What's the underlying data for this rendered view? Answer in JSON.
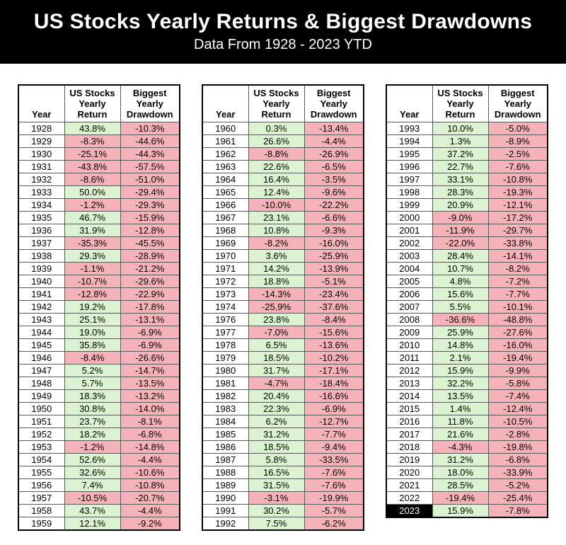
{
  "header": {
    "title": "US Stocks Yearly Returns & Biggest Drawdowns",
    "subtitle": "Data From 1928 - 2023 YTD"
  },
  "theme": {
    "banner_bg": "#000000",
    "banner_fg": "#ffffff",
    "positive_cell": "#dbf3d0",
    "negative_cell": "#f5b3b9",
    "highlight_year_bg": "#000000",
    "highlight_year_fg": "#ffffff",
    "grid_line": "#595959",
    "table_border": "#000000"
  },
  "chart_data": {
    "type": "table",
    "title": "US Stocks Yearly Returns & Biggest Drawdowns",
    "subtitle": "Data From 1928 - 2023 YTD",
    "columns": [
      "Year",
      "US Stocks Yearly Return",
      "Biggest Yearly Drawdown"
    ],
    "highlight_years": [
      "2023"
    ],
    "tables": [
      {
        "rows": [
          [
            "1928",
            "43.8%",
            "-10.3%"
          ],
          [
            "1929",
            "-8.3%",
            "-44.6%"
          ],
          [
            "1930",
            "-25.1%",
            "-44.3%"
          ],
          [
            "1931",
            "-43.8%",
            "-57.5%"
          ],
          [
            "1932",
            "-8.6%",
            "-51.0%"
          ],
          [
            "1933",
            "50.0%",
            "-29.4%"
          ],
          [
            "1934",
            "-1.2%",
            "-29.3%"
          ],
          [
            "1935",
            "46.7%",
            "-15.9%"
          ],
          [
            "1936",
            "31.9%",
            "-12.8%"
          ],
          [
            "1937",
            "-35.3%",
            "-45.5%"
          ],
          [
            "1938",
            "29.3%",
            "-28.9%"
          ],
          [
            "1939",
            "-1.1%",
            "-21.2%"
          ],
          [
            "1940",
            "-10.7%",
            "-29.6%"
          ],
          [
            "1941",
            "-12.8%",
            "-22.9%"
          ],
          [
            "1942",
            "19.2%",
            "-17.8%"
          ],
          [
            "1943",
            "25.1%",
            "-13.1%"
          ],
          [
            "1944",
            "19.0%",
            "-6.9%"
          ],
          [
            "1945",
            "35.8%",
            "-6.9%"
          ],
          [
            "1946",
            "-8.4%",
            "-26.6%"
          ],
          [
            "1947",
            "5.2%",
            "-14.7%"
          ],
          [
            "1948",
            "5.7%",
            "-13.5%"
          ],
          [
            "1949",
            "18.3%",
            "-13.2%"
          ],
          [
            "1950",
            "30.8%",
            "-14.0%"
          ],
          [
            "1951",
            "23.7%",
            "-8.1%"
          ],
          [
            "1952",
            "18.2%",
            "-6.8%"
          ],
          [
            "1953",
            "-1.2%",
            "-14.8%"
          ],
          [
            "1954",
            "52.6%",
            "-4.4%"
          ],
          [
            "1955",
            "32.6%",
            "-10.6%"
          ],
          [
            "1956",
            "7.4%",
            "-10.8%"
          ],
          [
            "1957",
            "-10.5%",
            "-20.7%"
          ],
          [
            "1958",
            "43.7%",
            "-4.4%"
          ],
          [
            "1959",
            "12.1%",
            "-9.2%"
          ]
        ]
      },
      {
        "rows": [
          [
            "1960",
            "0.3%",
            "-13.4%"
          ],
          [
            "1961",
            "26.6%",
            "-4.4%"
          ],
          [
            "1962",
            "-8.8%",
            "-26.9%"
          ],
          [
            "1963",
            "22.6%",
            "-6.5%"
          ],
          [
            "1964",
            "16.4%",
            "-3.5%"
          ],
          [
            "1965",
            "12.4%",
            "-9.6%"
          ],
          [
            "1966",
            "-10.0%",
            "-22.2%"
          ],
          [
            "1967",
            "23.1%",
            "-6.6%"
          ],
          [
            "1968",
            "10.8%",
            "-9.3%"
          ],
          [
            "1969",
            "-8.2%",
            "-16.0%"
          ],
          [
            "1970",
            "3.6%",
            "-25.9%"
          ],
          [
            "1971",
            "14.2%",
            "-13.9%"
          ],
          [
            "1972",
            "18.8%",
            "-5.1%"
          ],
          [
            "1973",
            "-14.3%",
            "-23.4%"
          ],
          [
            "1974",
            "-25.9%",
            "-37.6%"
          ],
          [
            "1976",
            "23.8%",
            "-8.4%"
          ],
          [
            "1977",
            "-7.0%",
            "-15.6%"
          ],
          [
            "1978",
            "6.5%",
            "-13.6%"
          ],
          [
            "1979",
            "18.5%",
            "-10.2%"
          ],
          [
            "1980",
            "31.7%",
            "-17.1%"
          ],
          [
            "1981",
            "-4.7%",
            "-18.4%"
          ],
          [
            "1982",
            "20.4%",
            "-16.6%"
          ],
          [
            "1983",
            "22.3%",
            "-6.9%"
          ],
          [
            "1984",
            "6.2%",
            "-12.7%"
          ],
          [
            "1985",
            "31.2%",
            "-7.7%"
          ],
          [
            "1986",
            "18.5%",
            "-9.4%"
          ],
          [
            "1987",
            "5.8%",
            "-33.5%"
          ],
          [
            "1988",
            "16.5%",
            "-7.6%"
          ],
          [
            "1989",
            "31.5%",
            "-7.6%"
          ],
          [
            "1990",
            "-3.1%",
            "-19.9%"
          ],
          [
            "1991",
            "30.2%",
            "-5.7%"
          ],
          [
            "1992",
            "7.5%",
            "-6.2%"
          ]
        ]
      },
      {
        "rows": [
          [
            "1993",
            "10.0%",
            "-5.0%"
          ],
          [
            "1994",
            "1.3%",
            "-8.9%"
          ],
          [
            "1995",
            "37.2%",
            "-2.5%"
          ],
          [
            "1996",
            "22.7%",
            "-7.6%"
          ],
          [
            "1997",
            "33.1%",
            "-10.8%"
          ],
          [
            "1998",
            "28.3%",
            "-19.3%"
          ],
          [
            "1999",
            "20.9%",
            "-12.1%"
          ],
          [
            "2000",
            "-9.0%",
            "-17.2%"
          ],
          [
            "2001",
            "-11.9%",
            "-29.7%"
          ],
          [
            "2002",
            "-22.0%",
            "-33.8%"
          ],
          [
            "2003",
            "28.4%",
            "-14.1%"
          ],
          [
            "2004",
            "10.7%",
            "-8.2%"
          ],
          [
            "2005",
            "4.8%",
            "-7.2%"
          ],
          [
            "2006",
            "15.6%",
            "-7.7%"
          ],
          [
            "2007",
            "5.5%",
            "-10.1%"
          ],
          [
            "2008",
            "-36.6%",
            "-48.8%"
          ],
          [
            "2009",
            "25.9%",
            "-27.6%"
          ],
          [
            "2010",
            "14.8%",
            "-16.0%"
          ],
          [
            "2011",
            "2.1%",
            "-19.4%"
          ],
          [
            "2012",
            "15.9%",
            "-9.9%"
          ],
          [
            "2013",
            "32.2%",
            "-5.8%"
          ],
          [
            "2014",
            "13.5%",
            "-7.4%"
          ],
          [
            "2015",
            "1.4%",
            "-12.4%"
          ],
          [
            "2016",
            "11.8%",
            "-10.5%"
          ],
          [
            "2017",
            "21.6%",
            "-2.8%"
          ],
          [
            "2018",
            "-4.3%",
            "-19.8%"
          ],
          [
            "2019",
            "31.2%",
            "-6.8%"
          ],
          [
            "2020",
            "18.0%",
            "-33.9%"
          ],
          [
            "2021",
            "28.5%",
            "-5.2%"
          ],
          [
            "2022",
            "-19.4%",
            "-25.4%"
          ],
          [
            "2023",
            "15.9%",
            "-7.8%"
          ]
        ]
      }
    ]
  }
}
